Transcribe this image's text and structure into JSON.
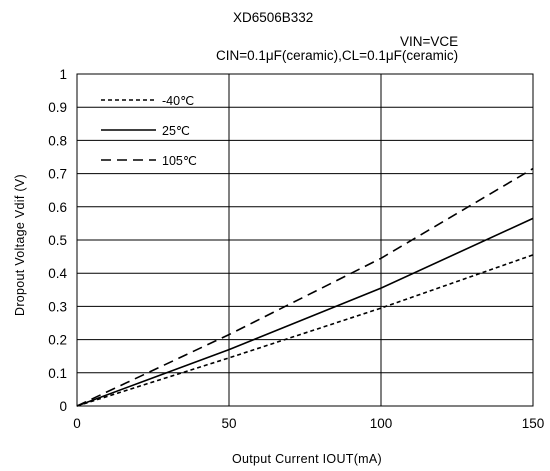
{
  "chart_data": {
    "type": "line",
    "title": "XD6506B332",
    "conditions": [
      "VIN=VCE",
      "CIN=0.1μF(ceramic),CL=0.1μF(ceramic)"
    ],
    "xlabel": "Output Current  IOUT(mA)",
    "ylabel": "Dropout Voltage  Vdif (V)",
    "xlim": [
      0,
      150
    ],
    "ylim": [
      0,
      1
    ],
    "x_ticks": [
      "0",
      "50",
      "100",
      "150"
    ],
    "y_ticks": [
      "0",
      "0.1",
      "0.2",
      "0.3",
      "0.4",
      "0.5",
      "0.6",
      "0.7",
      "0.8",
      "0.9",
      "1"
    ],
    "grid": true,
    "legend_position": "top-left",
    "series": [
      {
        "name": "-40℃",
        "style": "short-dash",
        "x": [
          0,
          50,
          100,
          150
        ],
        "y": [
          0,
          0.145,
          0.295,
          0.455
        ]
      },
      {
        "name": "25℃",
        "style": "solid",
        "x": [
          0,
          50,
          100,
          150
        ],
        "y": [
          0,
          0.17,
          0.355,
          0.565
        ]
      },
      {
        "name": "105℃",
        "style": "long-dash",
        "x": [
          0,
          50,
          100,
          150
        ],
        "y": [
          0,
          0.215,
          0.445,
          0.715
        ]
      }
    ]
  }
}
